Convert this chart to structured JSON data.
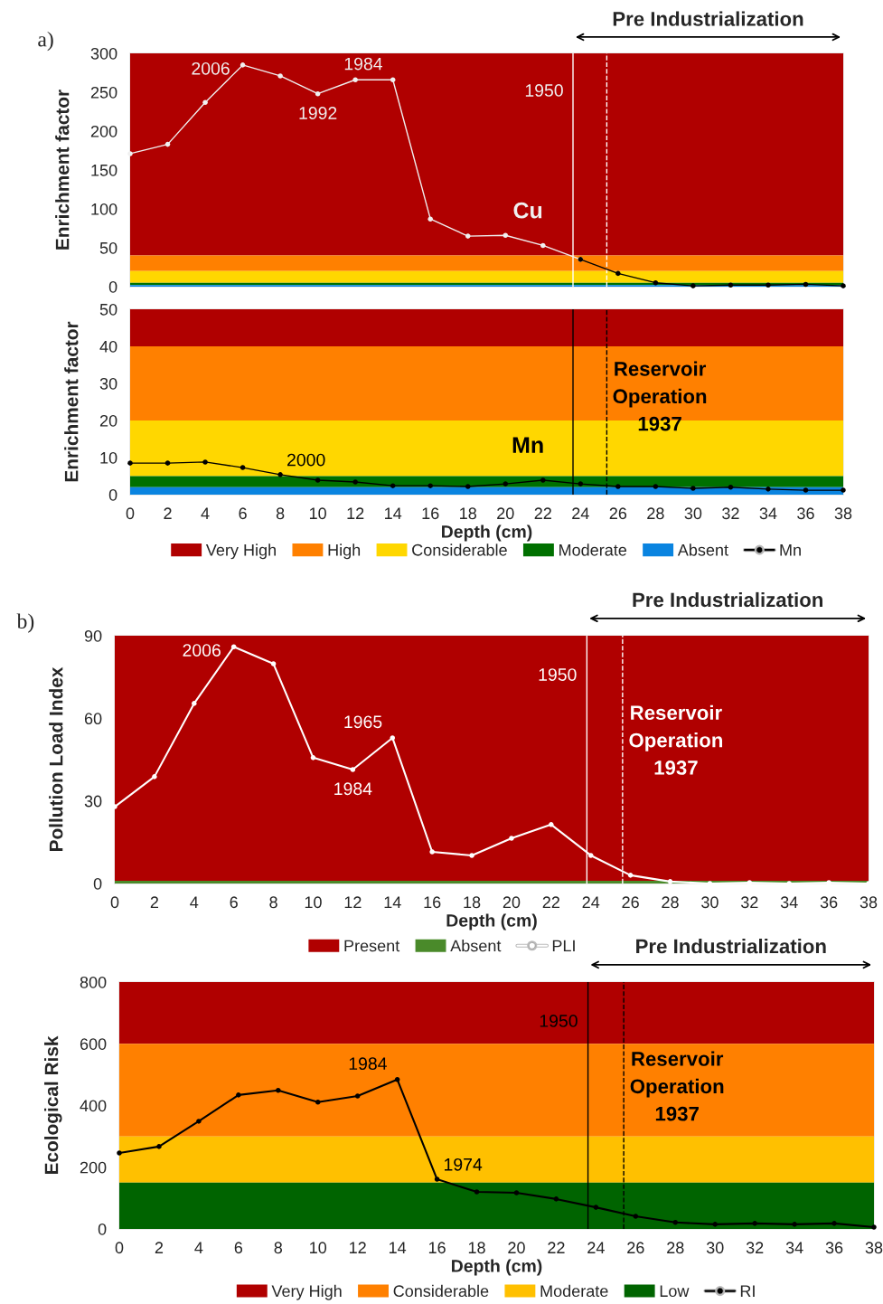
{
  "chart_data": [
    {
      "type": "line",
      "ylabel": "Enrichment factor",
      "xlim": [
        0,
        38
      ],
      "xticks": [
        0,
        2,
        4,
        6,
        8,
        10,
        12,
        14,
        16,
        18,
        20,
        22,
        24,
        26,
        28,
        30,
        32,
        34,
        36,
        38
      ],
      "ylim": [
        0,
        300
      ],
      "yticks": [
        0,
        50,
        100,
        150,
        200,
        250,
        300
      ],
      "tick_labels": "y",
      "grid": false,
      "legend": false,
      "marker": "circle",
      "series": [
        {
          "color": "#f0f0f0",
          "x": [
            0,
            2,
            4,
            6,
            8,
            10,
            12,
            14,
            16,
            18,
            20,
            22,
            24
          ],
          "values": [
            171,
            183,
            237,
            285,
            271,
            248,
            266,
            266,
            87,
            65,
            66,
            53,
            35
          ]
        },
        {
          "color": "#000000",
          "x": [
            24,
            26,
            28,
            30,
            32,
            34,
            36,
            38
          ],
          "values": [
            35,
            17,
            5,
            1,
            2,
            2,
            3,
            1
          ]
        }
      ],
      "bands": [
        {
          "axis": "y",
          "from": 40,
          "to": 300,
          "color": "#b00000"
        },
        {
          "axis": "y",
          "from": 20,
          "to": 40,
          "color": "#ff8000"
        },
        {
          "axis": "y",
          "from": 5,
          "to": 20,
          "color": "#ffd700"
        },
        {
          "axis": "y",
          "from": 2,
          "to": 5,
          "color": "#007000"
        },
        {
          "axis": "y",
          "from": 0,
          "to": 2,
          "color": "#0a84e0"
        }
      ],
      "ref_lines": [
        {
          "axis": "x",
          "value": 23.6,
          "color": "#ffffff",
          "line_style": "solid"
        },
        {
          "axis": "x",
          "value": 25.4,
          "color": "#ffffff",
          "line_style": "dashed"
        }
      ],
      "annotations": [
        "a)",
        "Pre Industrialization",
        "1950",
        "Cu",
        {
          "text": "2006",
          "x": 6,
          "y": 285
        },
        {
          "text": "1992",
          "x": 10,
          "y": 248
        },
        {
          "text": "1984",
          "x": 14,
          "y": 266
        }
      ]
    },
    {
      "type": "line",
      "ylabel": "Enrichment factor",
      "xlabel": "Depth (cm)",
      "xlim": [
        0,
        38
      ],
      "xticks": [
        0,
        2,
        4,
        6,
        8,
        10,
        12,
        14,
        16,
        18,
        20,
        22,
        24,
        26,
        28,
        30,
        32,
        34,
        36,
        38
      ],
      "ylim": [
        0,
        50
      ],
      "yticks": [
        0,
        10,
        20,
        30,
        40,
        50
      ],
      "grid": false,
      "legend": "bottom",
      "marker": "circle",
      "series": [
        {
          "name": "Mn",
          "color": "#000000",
          "x": [
            0,
            2,
            4,
            6,
            8,
            10,
            12,
            14,
            16,
            18,
            20,
            22,
            24,
            26,
            28,
            30,
            32,
            34,
            36,
            38
          ],
          "values": [
            8.5,
            8.5,
            8.8,
            7.3,
            5.4,
            3.9,
            3.4,
            2.4,
            2.4,
            2.2,
            2.9,
            3.9,
            2.9,
            2.2,
            2.2,
            1.7,
            2.0,
            1.5,
            1.2,
            1.2
          ]
        }
      ],
      "bands": [
        {
          "axis": "y",
          "from": 40,
          "to": 50,
          "color": "#b00000",
          "label": "Very High"
        },
        {
          "axis": "y",
          "from": 20,
          "to": 40,
          "color": "#ff8000",
          "label": "High"
        },
        {
          "axis": "y",
          "from": 5,
          "to": 20,
          "color": "#ffd700",
          "label": "Considerable"
        },
        {
          "axis": "y",
          "from": 2,
          "to": 5,
          "color": "#007000",
          "label": "Moderate"
        },
        {
          "axis": "y",
          "from": 0,
          "to": 2,
          "color": "#0a84e0",
          "label": "Absent"
        }
      ],
      "ref_lines": [
        {
          "axis": "x",
          "value": 23.6,
          "color": "#000000",
          "line_style": "solid"
        },
        {
          "axis": "x",
          "value": 25.4,
          "color": "#000000",
          "line_style": "dashed"
        }
      ],
      "annotations": [
        "Mn",
        "Reservoir\nOperation\n1937",
        {
          "text": "2000",
          "x": 8,
          "y": 5.4
        }
      ]
    },
    {
      "type": "line",
      "ylabel": "Pollution Load Index",
      "xlabel": "Depth (cm)",
      "xlim": [
        0,
        38
      ],
      "xticks": [
        0,
        2,
        4,
        6,
        8,
        10,
        12,
        14,
        16,
        18,
        20,
        22,
        24,
        26,
        28,
        30,
        32,
        34,
        36,
        38
      ],
      "ylim": [
        0,
        90
      ],
      "yticks": [
        0,
        30,
        60,
        90
      ],
      "grid": false,
      "legend": "bottom",
      "marker": "circle",
      "series": [
        {
          "name": "PLI",
          "color": "#ffffff",
          "x": [
            0,
            2,
            4,
            6,
            8,
            10,
            12,
            14,
            16,
            18,
            20,
            22,
            24,
            26,
            28,
            30,
            32,
            34,
            36,
            38
          ],
          "values": [
            27.9,
            38.8,
            65.4,
            86,
            79.8,
            45.7,
            41.4,
            52.9,
            11.5,
            10.2,
            16.4,
            21.4,
            10.2,
            3,
            0.7,
            0,
            0.3,
            0,
            0.3,
            0
          ]
        }
      ],
      "bands": [
        {
          "axis": "y",
          "from": 1,
          "to": 90,
          "color": "#b00000",
          "label": "Present"
        },
        {
          "axis": "y",
          "from": 0,
          "to": 1,
          "color": "#4a8a2a",
          "label": "Absent"
        }
      ],
      "ref_lines": [
        {
          "axis": "x",
          "value": 23.8,
          "color": "#ffffff",
          "line_style": "solid"
        },
        {
          "axis": "x",
          "value": 25.6,
          "color": "#ffffff",
          "line_style": "dashed"
        }
      ],
      "annotations": [
        "b)",
        "Pre Industrialization",
        "1950",
        "Reservoir\nOperation\n1937",
        {
          "text": "2006",
          "x": 6,
          "y": 86
        },
        {
          "text": "1984",
          "x": 12,
          "y": 41.4
        },
        {
          "text": "1965",
          "x": 14,
          "y": 52.9
        }
      ]
    },
    {
      "type": "line",
      "ylabel": "Ecological Risk",
      "xlabel": "Depth (cm)",
      "xlim": [
        0,
        38
      ],
      "xticks": [
        0,
        2,
        4,
        6,
        8,
        10,
        12,
        14,
        16,
        18,
        20,
        22,
        24,
        26,
        28,
        30,
        32,
        34,
        36,
        38
      ],
      "ylim": [
        0,
        800
      ],
      "yticks": [
        0,
        200,
        400,
        600,
        800
      ],
      "grid": false,
      "legend": "bottom",
      "marker": "circle",
      "series": [
        {
          "name": "RI",
          "color": "#000000",
          "x": [
            0,
            2,
            4,
            6,
            8,
            10,
            12,
            14,
            16,
            18,
            20,
            22,
            24,
            26,
            28,
            30,
            32,
            34,
            36,
            38
          ],
          "values": [
            246,
            267,
            349,
            434,
            449,
            411,
            431,
            484,
            161,
            120,
            117,
            97,
            70,
            41,
            21,
            15,
            18,
            15,
            18,
            6
          ]
        }
      ],
      "bands": [
        {
          "axis": "y",
          "from": 600,
          "to": 800,
          "color": "#b00000",
          "label": "Very High"
        },
        {
          "axis": "y",
          "from": 300,
          "to": 600,
          "color": "#ff8000",
          "label": "Considerable"
        },
        {
          "axis": "y",
          "from": 150,
          "to": 300,
          "color": "#ffc000",
          "label": "Moderate"
        },
        {
          "axis": "y",
          "from": 0,
          "to": 150,
          "color": "#006400",
          "label": "Low"
        }
      ],
      "ref_lines": [
        {
          "axis": "x",
          "value": 23.6,
          "color": "#000000",
          "line_style": "solid"
        },
        {
          "axis": "x",
          "value": 25.4,
          "color": "#000000",
          "line_style": "dashed"
        }
      ],
      "annotations": [
        "Pre Industrialization",
        "1950",
        "Reservoir\nOperation\n1937",
        {
          "text": "1984",
          "x": 14,
          "y": 484
        },
        {
          "text": "1974",
          "x": 16,
          "y": 161
        }
      ]
    }
  ]
}
